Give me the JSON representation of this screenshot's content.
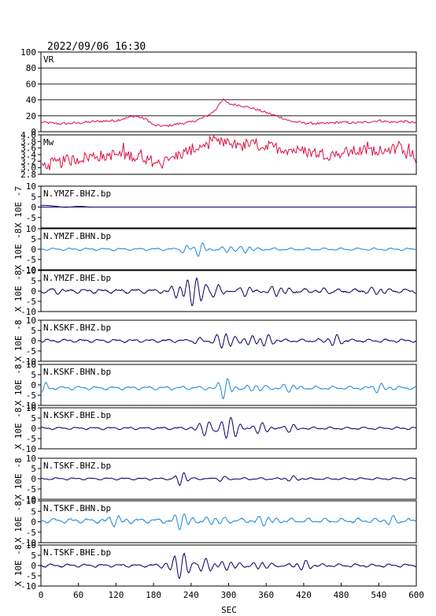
{
  "header": {
    "datetime": "2022/09/06  16:30"
  },
  "chart_data": {
    "type": "line",
    "xlabel": "SEC",
    "xlim": [
      0,
      600
    ],
    "x_ticks": [
      "0",
      "60",
      "120",
      "180",
      "240",
      "300",
      "360",
      "420",
      "480",
      "540",
      "600"
    ],
    "trace_color_dark": "#000066",
    "trace_color_light": "#1a88dd",
    "panels": [
      {
        "id": "vr",
        "label": "VR",
        "ylim": [
          0,
          100
        ],
        "yticks": [
          0,
          20,
          40,
          60,
          80,
          100
        ],
        "ytick_labels": [
          "0",
          "20",
          "40",
          "60",
          "80",
          "100"
        ],
        "color": "#dd1144",
        "grid": true,
        "kind": "vr",
        "points": [
          [
            0,
            12
          ],
          [
            30,
            10
          ],
          [
            60,
            11
          ],
          [
            90,
            13
          ],
          [
            120,
            14
          ],
          [
            150,
            20
          ],
          [
            170,
            15
          ],
          [
            180,
            8
          ],
          [
            200,
            7
          ],
          [
            220,
            10
          ],
          [
            240,
            12
          ],
          [
            258,
            17
          ],
          [
            270,
            22
          ],
          [
            280,
            28
          ],
          [
            285,
            36
          ],
          [
            292,
            40
          ],
          [
            300,
            35
          ],
          [
            320,
            33
          ],
          [
            340,
            29
          ],
          [
            360,
            24
          ],
          [
            380,
            19
          ],
          [
            400,
            13
          ],
          [
            420,
            11
          ],
          [
            450,
            10
          ],
          [
            480,
            12
          ],
          [
            500,
            11
          ],
          [
            520,
            12
          ],
          [
            540,
            14
          ],
          [
            560,
            12
          ],
          [
            580,
            13
          ],
          [
            600,
            11
          ]
        ]
      },
      {
        "id": "mw",
        "label": "Mw",
        "ylim": [
          2.8,
          4.0
        ],
        "yticks": [
          2.8,
          3.0,
          3.2,
          3.4,
          3.6,
          3.8,
          4.0
        ],
        "ytick_labels": [
          "2.8",
          "3.0",
          "3.2",
          "3.4",
          "3.6",
          "3.8",
          "4.0"
        ],
        "color": "#dd1144",
        "grid": false,
        "kind": "mw",
        "points": [
          [
            0,
            3.05
          ],
          [
            40,
            3.2
          ],
          [
            80,
            3.35
          ],
          [
            120,
            3.4
          ],
          [
            160,
            3.35
          ],
          [
            190,
            3.1
          ],
          [
            210,
            3.3
          ],
          [
            240,
            3.55
          ],
          [
            270,
            3.75
          ],
          [
            300,
            3.75
          ],
          [
            340,
            3.7
          ],
          [
            380,
            3.6
          ],
          [
            420,
            3.5
          ],
          [
            460,
            3.4
          ],
          [
            500,
            3.5
          ],
          [
            540,
            3.55
          ],
          [
            580,
            3.6
          ],
          [
            600,
            3.25
          ]
        ]
      },
      {
        "id": "ymzf-bhz",
        "label": "N.YMZF.BHZ.bp",
        "unit": "X 10E -7",
        "ylim": [
          -10,
          10
        ],
        "yticks": [
          -5,
          0,
          5,
          10
        ],
        "ytick_labels": [
          "-5",
          "0",
          "5",
          "10"
        ],
        "color_key": "dark",
        "kind": "short",
        "amp": 0.8,
        "events": []
      },
      {
        "id": "ymzf-bhn",
        "label": "N.YMZF.BHN.bp",
        "unit": "X 10E -8",
        "ylim": [
          -10,
          10
        ],
        "yticks": [
          -10,
          -5,
          0,
          5,
          10
        ],
        "ytick_labels": [
          "-10",
          "-5",
          "0",
          "5",
          "10"
        ],
        "color_key": "light",
        "kind": "noise",
        "amp": 0.7,
        "events": [
          [
            255,
            3.5,
            7
          ],
          [
            230,
            2,
            6
          ],
          [
            300,
            1.8,
            9
          ],
          [
            330,
            1.5,
            8
          ]
        ]
      },
      {
        "id": "ymzf-bhe",
        "label": "N.YMZF.BHE.bp",
        "unit": "X 10E -8",
        "ylim": [
          -10,
          10
        ],
        "yticks": [
          -10,
          -5,
          0,
          5,
          10
        ],
        "ytick_labels": [
          "-10",
          "-5",
          "0",
          "5",
          "10"
        ],
        "color_key": "dark",
        "kind": "noise",
        "amp": 1.2,
        "events": [
          [
            245,
            7,
            14
          ],
          [
            220,
            3,
            10
          ],
          [
            280,
            3,
            12
          ],
          [
            30,
            1.5,
            10
          ],
          [
            330,
            2,
            10
          ],
          [
            380,
            2,
            12
          ],
          [
            450,
            1.5,
            10
          ],
          [
            540,
            1.5,
            12
          ]
        ]
      },
      {
        "id": "kskf-bhz",
        "label": "N.KSKF.BHZ.bp",
        "unit": "X 10E -8",
        "ylim": [
          -10,
          10
        ],
        "yticks": [
          -10,
          -5,
          0,
          5,
          10
        ],
        "ytick_labels": [
          "-10",
          "-5",
          "0",
          "5",
          "10"
        ],
        "color_key": "dark",
        "kind": "noise",
        "amp": 0.9,
        "events": [
          [
            292,
            4,
            12
          ],
          [
            335,
            2,
            10
          ],
          [
            360,
            2.5,
            10
          ],
          [
            470,
            2.5,
            10
          ],
          [
            250,
            1.5,
            8
          ]
        ]
      },
      {
        "id": "kskf-bhn",
        "label": "N.KSKF.BHN.bp",
        "unit": "X 10E -8",
        "ylim": [
          -10,
          10
        ],
        "yticks": [
          -10,
          -5,
          0,
          5,
          10
        ],
        "ytick_labels": [
          "-10",
          "-5",
          "0",
          "5",
          "10"
        ],
        "color_key": "light",
        "kind": "noise",
        "amp": 1.0,
        "offset": -1.5,
        "events": [
          [
            295,
            5,
            9
          ],
          [
            340,
            2,
            10
          ],
          [
            5,
            2.5,
            6
          ],
          [
            400,
            1.8,
            10
          ],
          [
            540,
            1.8,
            10
          ]
        ]
      },
      {
        "id": "kskf-bhe",
        "label": "N.KSKF.BHE.bp",
        "unit": "X 10E -8",
        "ylim": [
          -10,
          10
        ],
        "yticks": [
          -10,
          -5,
          0,
          5,
          10
        ],
        "ytick_labels": [
          "-10",
          "-5",
          "0",
          "5",
          "10"
        ],
        "color_key": "dark",
        "kind": "noise",
        "amp": 0.7,
        "events": [
          [
            300,
            5,
            14
          ],
          [
            265,
            3.5,
            12
          ],
          [
            350,
            2.5,
            12
          ],
          [
            400,
            2,
            10
          ]
        ]
      },
      {
        "id": "tskf-bhz",
        "label": "N.TSKF.BHZ.bp",
        "unit": "X 10E -8",
        "ylim": [
          -10,
          10
        ],
        "yticks": [
          -10,
          -5,
          0,
          5,
          10
        ],
        "ytick_labels": [
          "-10",
          "-5",
          "0",
          "5",
          "10"
        ],
        "color_key": "dark",
        "kind": "noise",
        "amp": 0.6,
        "events": [
          [
            225,
            4,
            7
          ],
          [
            290,
            1.2,
            10
          ],
          [
            400,
            1,
            10
          ]
        ]
      },
      {
        "id": "tskf-bhn",
        "label": "N.TSKF.BHN.bp",
        "unit": "X 10E -8",
        "ylim": [
          -10,
          10
        ],
        "yticks": [
          -10,
          -5,
          0,
          5,
          10
        ],
        "ytick_labels": [
          "-10",
          "-5",
          "0",
          "5",
          "10"
        ],
        "color_key": "light",
        "kind": "noise",
        "amp": 1.3,
        "offset": 0.5,
        "events": [
          [
            225,
            3.5,
            10
          ],
          [
            275,
            2,
            12
          ],
          [
            120,
            1.8,
            12
          ],
          [
            360,
            1.8,
            12
          ],
          [
            560,
            2,
            10
          ]
        ]
      },
      {
        "id": "tskf-bhe",
        "label": "N.TSKF.BHE.bp",
        "unit": "X 10E -8",
        "ylim": [
          -10,
          10
        ],
        "yticks": [
          -10,
          -5,
          0,
          5,
          10
        ],
        "ytick_labels": [
          "-10",
          "-5",
          "0",
          "5",
          "10"
        ],
        "color_key": "dark",
        "kind": "noise",
        "amp": 0.9,
        "events": [
          [
            225,
            6,
            14
          ],
          [
            260,
            3,
            12
          ],
          [
            300,
            2,
            12
          ],
          [
            350,
            2,
            10
          ],
          [
            420,
            2,
            10
          ]
        ]
      }
    ]
  }
}
